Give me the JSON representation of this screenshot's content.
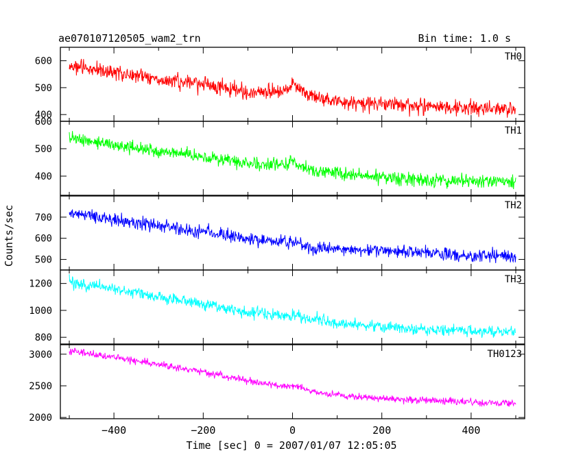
{
  "chart_data": {
    "type": "line",
    "title": "ae070107120505_wam2_trn",
    "subtitle": "Bin time: 1.0 s",
    "xlabel": "Time [sec] 0 = 2007/01/07 12:05:05",
    "ylabel": "Counts/sec",
    "xlim": [
      -520,
      520
    ],
    "x_range": [
      -500,
      500
    ],
    "x_ticks": [
      -400,
      -200,
      0,
      200,
      400
    ],
    "x_tick_labels": [
      "−400",
      "−200",
      "0",
      "200",
      "400"
    ],
    "grid": false,
    "panels": [
      {
        "name": "TH0",
        "color": "#ff0000",
        "ylim": [
          375,
          650
        ],
        "y_ticks": [
          400,
          500,
          600
        ],
        "y_tick_labels": [
          "400",
          "500",
          "600"
        ],
        "trend": [
          [
            -500,
            580
          ],
          [
            -400,
            560
          ],
          [
            -300,
            530
          ],
          [
            -200,
            510
          ],
          [
            -100,
            485
          ],
          [
            -10,
            485
          ],
          [
            0,
            520
          ],
          [
            30,
            470
          ],
          [
            100,
            445
          ],
          [
            200,
            440
          ],
          [
            300,
            430
          ],
          [
            400,
            425
          ],
          [
            500,
            420
          ]
        ],
        "noise": 35
      },
      {
        "name": "TH1",
        "color": "#00ff00",
        "ylim": [
          330,
          600
        ],
        "y_ticks": [
          400,
          500,
          600
        ],
        "y_tick_labels": [
          "400",
          "500",
          "600"
        ],
        "trend": [
          [
            -500,
            540
          ],
          [
            -400,
            515
          ],
          [
            -300,
            490
          ],
          [
            -200,
            470
          ],
          [
            -100,
            445
          ],
          [
            -10,
            440
          ],
          [
            0,
            460
          ],
          [
            30,
            420
          ],
          [
            100,
            410
          ],
          [
            200,
            395
          ],
          [
            300,
            385
          ],
          [
            400,
            380
          ],
          [
            500,
            378
          ]
        ],
        "noise": 30
      },
      {
        "name": "TH2",
        "color": "#0000ff",
        "ylim": [
          450,
          800
        ],
        "y_ticks": [
          500,
          600,
          700
        ],
        "y_tick_labels": [
          "500",
          "600",
          "700"
        ],
        "trend": [
          [
            -500,
            720
          ],
          [
            -400,
            690
          ],
          [
            -300,
            660
          ],
          [
            -200,
            630
          ],
          [
            -100,
            600
          ],
          [
            -10,
            580
          ],
          [
            0,
            585
          ],
          [
            30,
            560
          ],
          [
            100,
            550
          ],
          [
            200,
            545
          ],
          [
            300,
            530
          ],
          [
            400,
            520
          ],
          [
            500,
            510
          ]
        ],
        "noise": 40
      },
      {
        "name": "TH3",
        "color": "#00ffff",
        "ylim": [
          750,
          1300
        ],
        "y_ticks": [
          800,
          1000,
          1200
        ],
        "y_tick_labels": [
          "800",
          "1000",
          "1200"
        ],
        "trend": [
          [
            -500,
            1210
          ],
          [
            -400,
            1160
          ],
          [
            -300,
            1100
          ],
          [
            -200,
            1050
          ],
          [
            -100,
            990
          ],
          [
            -10,
            960
          ],
          [
            0,
            970
          ],
          [
            50,
            930
          ],
          [
            100,
            910
          ],
          [
            200,
            880
          ],
          [
            300,
            860
          ],
          [
            400,
            845
          ],
          [
            500,
            840
          ]
        ],
        "noise": 55
      },
      {
        "name": "TH0123",
        "color": "#ff00ff",
        "ylim": [
          1980,
          3150
        ],
        "y_ticks": [
          2000,
          2500,
          3000
        ],
        "y_tick_labels": [
          "2000",
          "2500",
          "3000"
        ],
        "trend": [
          [
            -500,
            3060
          ],
          [
            -400,
            2950
          ],
          [
            -300,
            2840
          ],
          [
            -200,
            2720
          ],
          [
            -100,
            2580
          ],
          [
            -10,
            2480
          ],
          [
            0,
            2500
          ],
          [
            50,
            2400
          ],
          [
            100,
            2350
          ],
          [
            200,
            2300
          ],
          [
            300,
            2270
          ],
          [
            400,
            2240
          ],
          [
            500,
            2225
          ]
        ],
        "noise": 70
      }
    ]
  }
}
